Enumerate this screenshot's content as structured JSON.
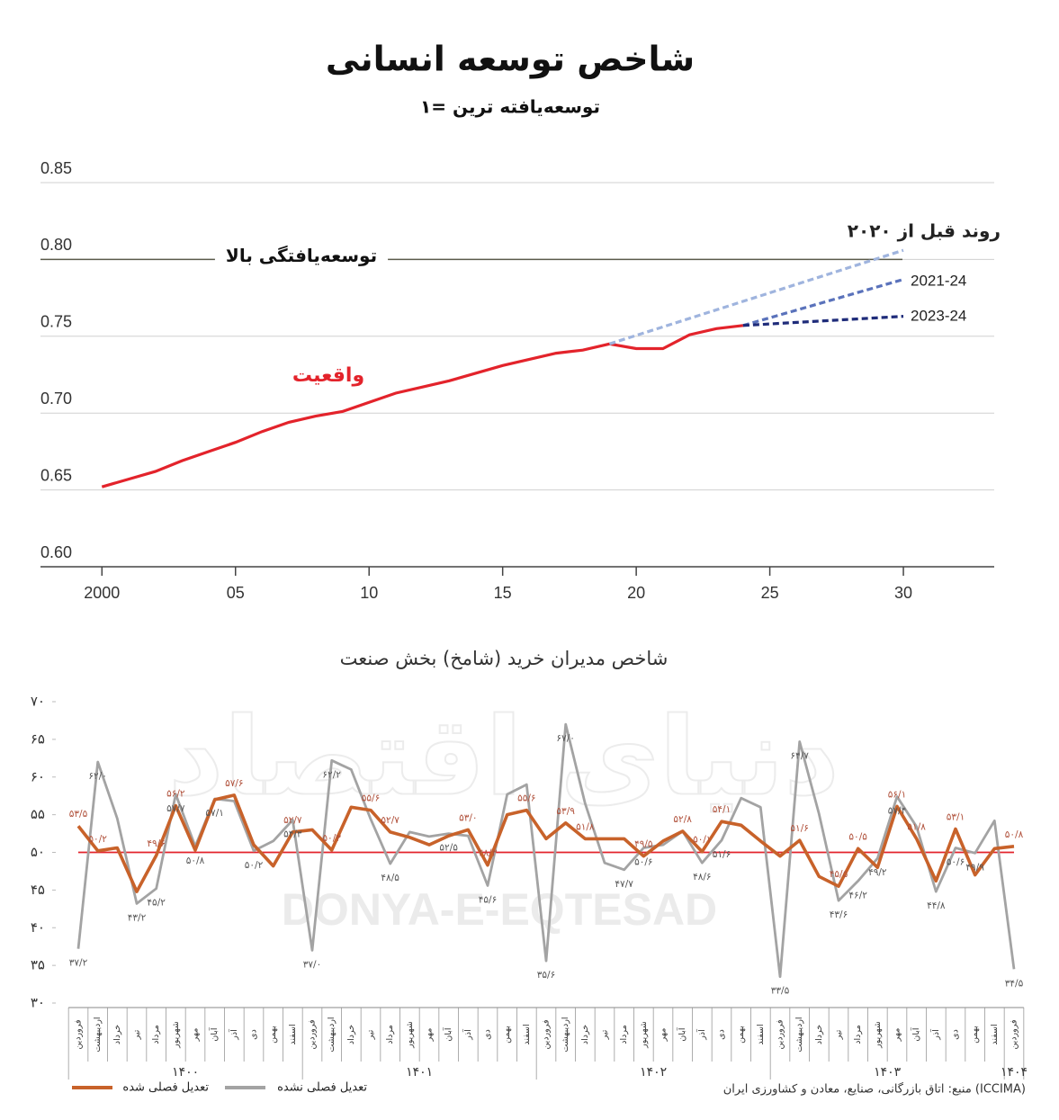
{
  "chart_data": [
    {
      "type": "line",
      "title": "شاخص توسعه انسانی",
      "subtitle": "۱= توسعه‌یافته ترین",
      "xlim": [
        1997.7,
        2033.4
      ],
      "xticks": [
        2000,
        {
          "value": 2005,
          "label": "05"
        },
        {
          "value": 2010,
          "label": "10"
        },
        {
          "value": 2015,
          "label": "15"
        },
        {
          "value": 2020,
          "label": "20"
        },
        {
          "value": 2025,
          "label": "25"
        },
        {
          "value": 2030,
          "label": "30"
        }
      ],
      "ylim": [
        0.6,
        0.85
      ],
      "yticks": [
        {
          "value": 0.6,
          "label": "0.60"
        },
        0.65,
        {
          "value": 0.7,
          "label": "0.70"
        },
        0.75,
        {
          "value": 0.8,
          "label": "0.80"
        },
        0.85
      ],
      "grid": true,
      "threshold": {
        "value": 0.8,
        "label": "توسعه‌یافتگی بالا"
      },
      "series": [
        {
          "name": "واقعیت",
          "color": "#e3232b",
          "dash": false,
          "x": [
            2000,
            2001,
            2002,
            2003,
            2004,
            2005,
            2006,
            2007,
            2008,
            2009,
            2010,
            2011,
            2012,
            2013,
            2014,
            2015,
            2016,
            2017,
            2018,
            2019,
            2020,
            2021,
            2022,
            2023,
            2024
          ],
          "values": [
            0.652,
            0.657,
            0.662,
            0.669,
            0.675,
            0.681,
            0.688,
            0.694,
            0.698,
            0.701,
            0.707,
            0.713,
            0.717,
            0.721,
            0.726,
            0.731,
            0.735,
            0.739,
            0.741,
            0.745,
            0.742,
            0.742,
            0.751,
            0.755,
            0.757
          ]
        },
        {
          "name": "روند قبل از ۲۰۲۰",
          "color": "#9fb4de",
          "dash": true,
          "x": [
            2019,
            2030
          ],
          "values": [
            0.745,
            0.806
          ]
        },
        {
          "name": "2021-24",
          "color": "#5a72bb",
          "dash": true,
          "x": [
            2024,
            2030
          ],
          "values": [
            0.757,
            0.787
          ]
        },
        {
          "name": "2023-24",
          "color": "#1f2c7a",
          "dash": true,
          "x": [
            2024,
            2030
          ],
          "values": [
            0.757,
            0.763
          ]
        }
      ]
    },
    {
      "type": "line",
      "title": "شاخص مدیران خرید (شامخ) بخش صنعت",
      "watermark": [
        "دنیای اقتصاد",
        "DONYA-E-EQTESAD"
      ],
      "ylim": [
        30,
        70
      ],
      "yticks": [
        {
          "value": 30,
          "label": "۳۰"
        },
        {
          "value": 35,
          "label": "۳۵"
        },
        {
          "value": 40,
          "label": "۴۰"
        },
        {
          "value": 45,
          "label": "۴۵"
        },
        {
          "value": 50,
          "label": "۵۰"
        },
        {
          "value": 55,
          "label": "۵۵"
        },
        {
          "value": 60,
          "label": "۶۰"
        },
        {
          "value": 65,
          "label": "۶۵"
        },
        {
          "value": 70,
          "label": "۷۰"
        }
      ],
      "reference_line": {
        "value": 50,
        "color": "#e3232b"
      },
      "groups": [
        {
          "label": "۱۴۰۰",
          "months": [
            "فروردین",
            "اردیبهشت",
            "خرداد",
            "تیر",
            "مرداد",
            "شهریور",
            "مهر",
            "آبان",
            "آذر",
            "دی",
            "بهمن",
            "اسفند"
          ]
        },
        {
          "label": "۱۴۰۱",
          "months": [
            "فروردین",
            "اردیبهشت",
            "خرداد",
            "تیر",
            "مرداد",
            "شهریور",
            "مهر",
            "آبان",
            "آذر",
            "دی",
            "بهمن",
            "اسفند"
          ]
        },
        {
          "label": "۱۴۰۲",
          "months": [
            "فروردین",
            "اردیبهشت",
            "خرداد",
            "تیر",
            "مرداد",
            "شهریور",
            "مهر",
            "آبان",
            "آذر",
            "دی",
            "بهمن",
            "اسفند"
          ]
        },
        {
          "label": "۱۴۰۳",
          "months": [
            "فروردین",
            "اردیبهشت",
            "خرداد",
            "تیر",
            "مرداد",
            "شهریور",
            "مهر",
            "آبان",
            "آذر",
            "دی",
            "بهمن",
            "اسفند"
          ]
        },
        {
          "label": "۱۴۰۴",
          "months": [
            "فروردین"
          ]
        }
      ],
      "legend": "bottom-left",
      "series": [
        {
          "name": "تعدیل فصلی شده",
          "color": "#c8622a",
          "values": [
            53.5,
            50.2,
            50.6,
            44.8,
            49.6,
            56.2,
            50.3,
            57.0,
            57.6,
            51.0,
            48.2,
            52.7,
            53.0,
            50.3,
            56.0,
            55.6,
            52.7,
            52.0,
            51.0,
            52.2,
            53.0,
            48.3,
            55.0,
            55.6,
            51.8,
            53.9,
            51.8,
            51.8,
            51.8,
            49.5,
            51.5,
            52.8,
            50.1,
            54.1,
            53.6,
            51.5,
            49.5,
            51.6,
            46.8,
            45.5,
            50.5,
            48.0,
            56.1,
            51.8,
            46.2,
            53.1,
            47.0,
            50.5,
            50.8
          ],
          "value_labels": [
            "۵۳/۵",
            "۵۰/۲",
            null,
            null,
            "۴۹/۶",
            "۵۶/۲",
            null,
            null,
            "۵۷/۶",
            null,
            null,
            "۵۲/۷",
            null,
            "۵۰/۳",
            null,
            "۵۵/۶",
            "۵۲/۷",
            null,
            null,
            null,
            "۵۳/۰",
            "۴۸/۳",
            null,
            "۵۵/۶",
            null,
            "۵۳/۹",
            "۵۱/۸",
            null,
            null,
            "۴۹/۵",
            null,
            "۵۲/۸",
            "۵۰/۱",
            "۵۴/۱",
            null,
            null,
            null,
            "۵۱/۶",
            null,
            "۴۵/۵",
            "۵۰/۵",
            null,
            "۵۶/۱",
            "۵۱/۸",
            null,
            "۵۳/۱",
            null,
            null,
            "۵۰/۸"
          ]
        },
        {
          "name": "تعدیل فصلی نشده",
          "color": "#a3a3a3",
          "values": [
            37.2,
            62.0,
            54.5,
            43.2,
            45.2,
            57.7,
            50.8,
            57.1,
            56.8,
            50.2,
            51.5,
            54.3,
            37.0,
            62.2,
            61.0,
            54.4,
            48.5,
            52.7,
            52.1,
            52.5,
            52.2,
            45.6,
            57.7,
            59.0,
            35.6,
            67.0,
            56.5,
            48.6,
            47.7,
            50.6,
            51.0,
            52.8,
            48.6,
            51.6,
            57.2,
            56.0,
            33.5,
            64.7,
            55.1,
            43.6,
            46.2,
            49.2,
            57.4,
            53.4,
            44.8,
            50.6,
            49.9,
            54.2,
            34.5
          ],
          "value_labels": [
            "۳۷/۲",
            "۶۲/۰",
            null,
            "۴۳/۲",
            "۴۵/۲",
            "۵۷/۷",
            "۵۰/۸",
            "۵۷/۱",
            null,
            "۵۰/۲",
            null,
            "۵۴/۳",
            "۳۷/۰",
            "۶۲/۲",
            null,
            null,
            "۴۸/۵",
            null,
            null,
            "۵۲/۵",
            null,
            "۴۵/۶",
            null,
            null,
            "۳۵/۶",
            "۶۷/۰",
            null,
            null,
            "۴۷/۷",
            "۵۰/۶",
            null,
            null,
            "۴۸/۶",
            "۵۱/۶",
            null,
            null,
            "۳۳/۵",
            "۶۴/۷",
            null,
            "۴۳/۶",
            "۴۶/۲",
            "۴۹/۲",
            "۵۷/۴",
            null,
            "۴۴/۸",
            "۵۰/۶",
            "۴۹/۹",
            null,
            "۳۴/۵"
          ]
        }
      ],
      "source": "منبع: اتاق بازرگانی، صنایع، معادن و کشاورزی ایران (ICCIMA)"
    }
  ]
}
